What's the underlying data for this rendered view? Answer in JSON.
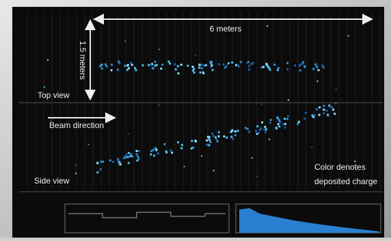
{
  "annotations": {
    "length": "6 meters",
    "height": "1.5 meters",
    "top_view": "Top view",
    "beam": "Beam direction",
    "side_view": "Side view",
    "color_note_1": "Color denotes",
    "color_note_2": "deposited charge"
  }
}
